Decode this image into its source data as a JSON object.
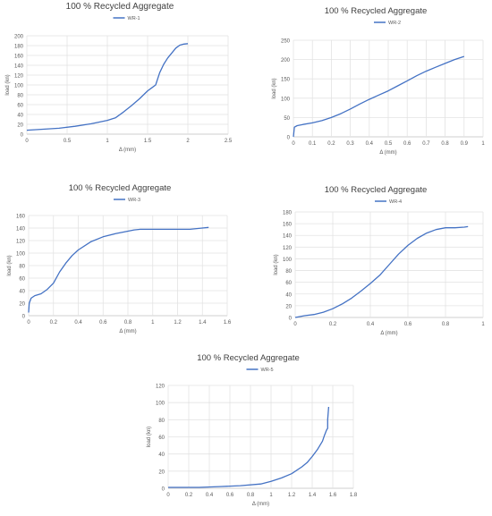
{
  "chart_data": [
    {
      "type": "line",
      "title": "100 % Recycled Aggregate",
      "legend": "top-center",
      "xlabel": "Δ (mm)",
      "ylabel": "load (kn)",
      "xlim": [
        0,
        2.5
      ],
      "ylim": [
        0,
        200
      ],
      "xticks": [
        "0",
        "0.5",
        "1",
        "1.5",
        "2",
        "2.5"
      ],
      "yticks": [
        "0",
        "20",
        "40",
        "60",
        "80",
        "100",
        "120",
        "140",
        "160",
        "180",
        "200"
      ],
      "grid": true,
      "series": [
        {
          "name": "WR-1",
          "color": "#4472C4",
          "x": [
            0,
            0.2,
            0.4,
            0.6,
            0.8,
            1.0,
            1.1,
            1.2,
            1.3,
            1.4,
            1.5,
            1.55,
            1.6,
            1.65,
            1.7,
            1.75,
            1.8,
            1.85,
            1.9,
            1.95,
            2.0
          ],
          "y": [
            8,
            10,
            12,
            16,
            21,
            28,
            33,
            45,
            58,
            72,
            88,
            94,
            100,
            125,
            142,
            155,
            165,
            175,
            181,
            183,
            184
          ]
        }
      ]
    },
    {
      "type": "line",
      "title": "100 % Recycled Aggregate",
      "legend": "top-center",
      "xlabel": "Δ (mm)",
      "ylabel": "load (kn)",
      "xlim": [
        0,
        1
      ],
      "ylim": [
        0,
        250
      ],
      "xticks": [
        "0",
        "0.1",
        "0.2",
        "0.3",
        "0.4",
        "0.5",
        "0.6",
        "0.7",
        "0.8",
        "0.9",
        "1"
      ],
      "yticks": [
        "0",
        "50",
        "100",
        "150",
        "200",
        "250"
      ],
      "grid": true,
      "series": [
        {
          "name": "WR-2",
          "color": "#4472C4",
          "x": [
            0,
            0.005,
            0.02,
            0.05,
            0.1,
            0.15,
            0.2,
            0.25,
            0.3,
            0.35,
            0.4,
            0.45,
            0.5,
            0.55,
            0.6,
            0.65,
            0.7,
            0.75,
            0.8,
            0.85,
            0.9
          ],
          "y": [
            0,
            25,
            29,
            32,
            36,
            42,
            50,
            60,
            72,
            85,
            97,
            108,
            119,
            132,
            145,
            158,
            170,
            180,
            190,
            200,
            208
          ]
        }
      ]
    },
    {
      "type": "line",
      "title": "100 % Recycled Aggregate",
      "legend": "top-center",
      "xlabel": "Δ (mm)",
      "ylabel": "load (kn)",
      "xlim": [
        0,
        1.6
      ],
      "ylim": [
        0,
        160
      ],
      "xticks": [
        "0",
        "0.2",
        "0.4",
        "0.6",
        "0.8",
        "1",
        "1.2",
        "1.4",
        "1.6"
      ],
      "yticks": [
        "0",
        "20",
        "40",
        "60",
        "80",
        "100",
        "120",
        "140",
        "160"
      ],
      "grid": true,
      "series": [
        {
          "name": "WR-3",
          "color": "#4472C4",
          "x": [
            0,
            0.005,
            0.02,
            0.05,
            0.1,
            0.15,
            0.2,
            0.25,
            0.3,
            0.35,
            0.4,
            0.5,
            0.6,
            0.7,
            0.8,
            0.85,
            0.9,
            1.0,
            1.2,
            1.3,
            1.4,
            1.45
          ],
          "y": [
            5,
            20,
            28,
            32,
            35,
            42,
            52,
            70,
            84,
            96,
            105,
            118,
            126,
            131,
            135,
            137,
            138,
            138,
            138,
            138,
            140,
            141
          ]
        }
      ]
    },
    {
      "type": "line",
      "title": "100 % Recycled Aggregate",
      "legend": "top-center",
      "xlabel": "Δ (mm)",
      "ylabel": "load (kn)",
      "xlim": [
        0,
        1
      ],
      "ylim": [
        0,
        180
      ],
      "xticks": [
        "0",
        "0.2",
        "0.4",
        "0.6",
        "0.8",
        "1"
      ],
      "yticks": [
        "0",
        "20",
        "40",
        "60",
        "80",
        "100",
        "120",
        "140",
        "160",
        "180"
      ],
      "grid": true,
      "series": [
        {
          "name": "WR-4",
          "color": "#4472C4",
          "x": [
            0,
            0.05,
            0.1,
            0.15,
            0.2,
            0.25,
            0.3,
            0.35,
            0.4,
            0.45,
            0.5,
            0.55,
            0.6,
            0.65,
            0.7,
            0.75,
            0.8,
            0.85,
            0.9,
            0.92
          ],
          "y": [
            0,
            3,
            5,
            9,
            15,
            23,
            33,
            45,
            58,
            72,
            90,
            108,
            123,
            135,
            144,
            150,
            153,
            153,
            154,
            155
          ]
        }
      ]
    },
    {
      "type": "line",
      "title": "100 % Recycled Aggregate",
      "legend": "top-center",
      "xlabel": "Δ (mm)",
      "ylabel": "load (kn)",
      "xlim": [
        0,
        1.8
      ],
      "ylim": [
        0,
        120
      ],
      "xticks": [
        "0",
        "0.2",
        "0.4",
        "0.6",
        "0.8",
        "1",
        "1.2",
        "1.4",
        "1.6",
        "1.8"
      ],
      "yticks": [
        "0",
        "20",
        "40",
        "60",
        "80",
        "100",
        "120"
      ],
      "grid": true,
      "series": [
        {
          "name": "WR-5",
          "color": "#4472C4",
          "x": [
            0,
            0.1,
            0.3,
            0.5,
            0.7,
            0.9,
            1.0,
            1.1,
            1.2,
            1.3,
            1.35,
            1.4,
            1.45,
            1.5,
            1.52,
            1.54,
            1.55,
            1.55,
            1.56
          ],
          "y": [
            1,
            1,
            1,
            2,
            3,
            5,
            8,
            12,
            17,
            25,
            30,
            37,
            45,
            55,
            62,
            68,
            70,
            80,
            95
          ]
        }
      ]
    }
  ]
}
